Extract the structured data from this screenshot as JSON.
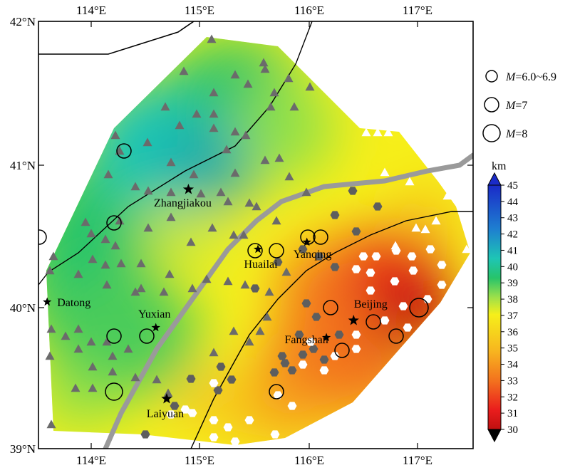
{
  "map": {
    "lon_ticks": [
      "114°E",
      "115°E",
      "116°E",
      "117°E"
    ],
    "lat_ticks": [
      "42°N",
      "41°N",
      "40°N",
      "39°N"
    ],
    "cities": [
      {
        "name": "Zhangjiakou",
        "lon": 114.88,
        "lat": 40.82
      },
      {
        "name": "Datong",
        "lon": 113.58,
        "lat": 40.03
      },
      {
        "name": "Yuxian",
        "lon": 114.58,
        "lat": 39.85
      },
      {
        "name": "Huailai",
        "lon": 115.52,
        "lat": 40.4
      },
      {
        "name": "Yanqing",
        "lon": 115.97,
        "lat": 40.45
      },
      {
        "name": "Beijing",
        "lon": 116.4,
        "lat": 39.9
      },
      {
        "name": "Fangshan",
        "lon": 116.15,
        "lat": 39.78
      },
      {
        "name": "Laiyuan",
        "lon": 114.68,
        "lat": 39.35
      }
    ]
  },
  "legend": {
    "quake_prefix": "M",
    "quake_items": [
      "=6.0~6.9",
      "=7",
      "=8"
    ],
    "colorbar_unit": "km",
    "colorbar_ticks": [
      "45",
      "44",
      "43",
      "42",
      "41",
      "40",
      "39",
      "38",
      "37",
      "36",
      "35",
      "34",
      "33",
      "32",
      "31",
      "30"
    ],
    "colors": {
      "deep": "#1a2bc8",
      "blue_green": "#1ea9a9",
      "green": "#27c46a",
      "light_green": "#8fe04a",
      "yellow": "#f6ef1a",
      "orange": "#f7a51f",
      "red": "#ea1d1d",
      "dark_red": "#c01010"
    }
  }
}
